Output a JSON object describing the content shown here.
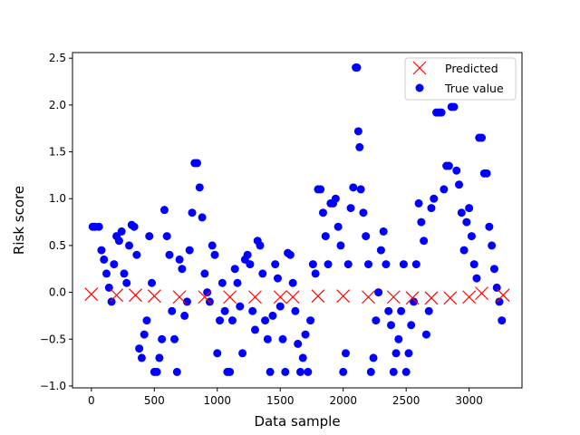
{
  "chart_data": {
    "type": "scatter",
    "title": "",
    "xlabel": "Data sample",
    "ylabel": "Risk score",
    "xlim": [
      -150,
      3420
    ],
    "ylim": [
      -1.02,
      2.56
    ],
    "xticks": [
      0,
      500,
      1000,
      1500,
      2000,
      2500,
      3000
    ],
    "yticks": [
      -1.0,
      -0.5,
      0.0,
      0.5,
      1.0,
      1.5,
      2.0,
      2.5
    ],
    "xtick_labels": [
      "0",
      "500",
      "1000",
      "1500",
      "2000",
      "2500",
      "3000"
    ],
    "ytick_labels": [
      "−1.0",
      "−0.5",
      "0.0",
      "0.5",
      "1.0",
      "1.5",
      "2.0",
      "2.5"
    ],
    "grid": false,
    "legend_position": "top-right",
    "series": [
      {
        "name": "Predicted",
        "marker": "x",
        "color": "#ff0000",
        "x_range": [
          0,
          3270
        ],
        "points": [
          [
            0,
            -0.02
          ],
          [
            200,
            -0.03
          ],
          [
            350,
            -0.03
          ],
          [
            500,
            -0.04
          ],
          [
            700,
            -0.05
          ],
          [
            900,
            -0.05
          ],
          [
            1100,
            -0.05
          ],
          [
            1300,
            -0.05
          ],
          [
            1500,
            -0.05
          ],
          [
            1600,
            -0.05
          ],
          [
            1800,
            -0.04
          ],
          [
            2000,
            -0.04
          ],
          [
            2200,
            -0.05
          ],
          [
            2400,
            -0.05
          ],
          [
            2550,
            -0.06
          ],
          [
            2700,
            -0.06
          ],
          [
            2850,
            -0.06
          ],
          [
            3000,
            -0.05
          ],
          [
            3100,
            -0.01
          ],
          [
            3270,
            -0.03
          ]
        ]
      },
      {
        "name": "True value",
        "marker": "o",
        "color": "#0000ff",
        "points": [
          [
            10,
            0.7
          ],
          [
            30,
            0.7
          ],
          [
            60,
            0.7
          ],
          [
            80,
            0.45
          ],
          [
            100,
            0.35
          ],
          [
            120,
            0.2
          ],
          [
            140,
            0.05
          ],
          [
            160,
            -0.1
          ],
          [
            180,
            0.3
          ],
          [
            200,
            0.6
          ],
          [
            220,
            0.55
          ],
          [
            240,
            0.65
          ],
          [
            260,
            0.2
          ],
          [
            280,
            0.1
          ],
          [
            300,
            0.5
          ],
          [
            320,
            0.72
          ],
          [
            340,
            0.7
          ],
          [
            360,
            0.4
          ],
          [
            380,
            -0.6
          ],
          [
            400,
            -0.7
          ],
          [
            420,
            -0.45
          ],
          [
            440,
            -0.3
          ],
          [
            460,
            0.6
          ],
          [
            480,
            0.1
          ],
          [
            500,
            -0.85
          ],
          [
            520,
            -0.85
          ],
          [
            540,
            -0.7
          ],
          [
            560,
            -0.5
          ],
          [
            580,
            0.88
          ],
          [
            600,
            0.6
          ],
          [
            620,
            0.4
          ],
          [
            640,
            -0.2
          ],
          [
            660,
            -0.5
          ],
          [
            680,
            -0.85
          ],
          [
            700,
            0.35
          ],
          [
            720,
            0.25
          ],
          [
            740,
            -0.25
          ],
          [
            760,
            -0.1
          ],
          [
            780,
            0.45
          ],
          [
            800,
            0.85
          ],
          [
            820,
            1.38
          ],
          [
            840,
            1.38
          ],
          [
            860,
            1.12
          ],
          [
            880,
            0.8
          ],
          [
            900,
            0.2
          ],
          [
            920,
            0.0
          ],
          [
            940,
            -0.1
          ],
          [
            960,
            0.5
          ],
          [
            980,
            0.4
          ],
          [
            1000,
            -0.65
          ],
          [
            1020,
            -0.3
          ],
          [
            1040,
            0.1
          ],
          [
            1060,
            -0.2
          ],
          [
            1080,
            -0.85
          ],
          [
            1100,
            -0.85
          ],
          [
            1120,
            -0.3
          ],
          [
            1140,
            0.25
          ],
          [
            1160,
            0.1
          ],
          [
            1180,
            -0.15
          ],
          [
            1200,
            -0.65
          ],
          [
            1220,
            0.35
          ],
          [
            1240,
            0.4
          ],
          [
            1260,
            0.3
          ],
          [
            1280,
            -0.2
          ],
          [
            1300,
            -0.4
          ],
          [
            1320,
            0.55
          ],
          [
            1340,
            0.5
          ],
          [
            1360,
            0.2
          ],
          [
            1380,
            -0.3
          ],
          [
            1400,
            -0.5
          ],
          [
            1420,
            -0.85
          ],
          [
            1440,
            -0.25
          ],
          [
            1460,
            0.3
          ],
          [
            1480,
            0.15
          ],
          [
            1500,
            -0.15
          ],
          [
            1520,
            -0.5
          ],
          [
            1540,
            -0.85
          ],
          [
            1560,
            0.42
          ],
          [
            1580,
            0.4
          ],
          [
            1600,
            0.1
          ],
          [
            1620,
            -0.2
          ],
          [
            1640,
            -0.55
          ],
          [
            1660,
            -0.85
          ],
          [
            1680,
            -0.7
          ],
          [
            1700,
            -0.45
          ],
          [
            1720,
            -0.85
          ],
          [
            1740,
            -0.3
          ],
          [
            1760,
            0.3
          ],
          [
            1780,
            0.2
          ],
          [
            1800,
            1.1
          ],
          [
            1820,
            1.1
          ],
          [
            1840,
            0.85
          ],
          [
            1860,
            0.6
          ],
          [
            1880,
            0.3
          ],
          [
            1900,
            0.95
          ],
          [
            1920,
            0.95
          ],
          [
            1940,
            1.0
          ],
          [
            1960,
            0.7
          ],
          [
            1980,
            0.5
          ],
          [
            2000,
            -0.85
          ],
          [
            2020,
            -0.65
          ],
          [
            2040,
            0.3
          ],
          [
            2060,
            0.9
          ],
          [
            2080,
            1.12
          ],
          [
            2100,
            2.4
          ],
          [
            2110,
            2.4
          ],
          [
            2120,
            1.72
          ],
          [
            2130,
            1.55
          ],
          [
            2140,
            1.1
          ],
          [
            2160,
            0.85
          ],
          [
            2180,
            0.6
          ],
          [
            2200,
            0.3
          ],
          [
            2220,
            -0.85
          ],
          [
            2240,
            -0.7
          ],
          [
            2260,
            -0.3
          ],
          [
            2280,
            0.0
          ],
          [
            2300,
            0.45
          ],
          [
            2320,
            0.65
          ],
          [
            2340,
            0.3
          ],
          [
            2360,
            -0.2
          ],
          [
            2380,
            -0.35
          ],
          [
            2400,
            -0.85
          ],
          [
            2420,
            -0.65
          ],
          [
            2440,
            -0.5
          ],
          [
            2460,
            -0.2
          ],
          [
            2480,
            0.3
          ],
          [
            2500,
            -0.85
          ],
          [
            2520,
            -0.65
          ],
          [
            2540,
            -0.35
          ],
          [
            2560,
            -0.1
          ],
          [
            2580,
            0.3
          ],
          [
            2600,
            0.95
          ],
          [
            2620,
            0.75
          ],
          [
            2640,
            0.55
          ],
          [
            2660,
            -0.45
          ],
          [
            2680,
            -0.2
          ],
          [
            2700,
            0.9
          ],
          [
            2720,
            1.0
          ],
          [
            2740,
            1.92
          ],
          [
            2760,
            1.92
          ],
          [
            2780,
            1.92
          ],
          [
            2800,
            1.1
          ],
          [
            2820,
            1.35
          ],
          [
            2840,
            1.35
          ],
          [
            2860,
            1.98
          ],
          [
            2880,
            1.98
          ],
          [
            2900,
            1.3
          ],
          [
            2920,
            1.15
          ],
          [
            2940,
            0.85
          ],
          [
            2960,
            0.45
          ],
          [
            2980,
            0.75
          ],
          [
            3000,
            0.9
          ],
          [
            3020,
            0.6
          ],
          [
            3040,
            0.3
          ],
          [
            3060,
            0.15
          ],
          [
            3080,
            1.65
          ],
          [
            3100,
            1.65
          ],
          [
            3120,
            1.27
          ],
          [
            3140,
            1.27
          ],
          [
            3160,
            0.7
          ],
          [
            3180,
            0.5
          ],
          [
            3200,
            0.25
          ],
          [
            3220,
            0.05
          ],
          [
            3240,
            -0.1
          ],
          [
            3260,
            -0.3
          ]
        ]
      }
    ]
  }
}
